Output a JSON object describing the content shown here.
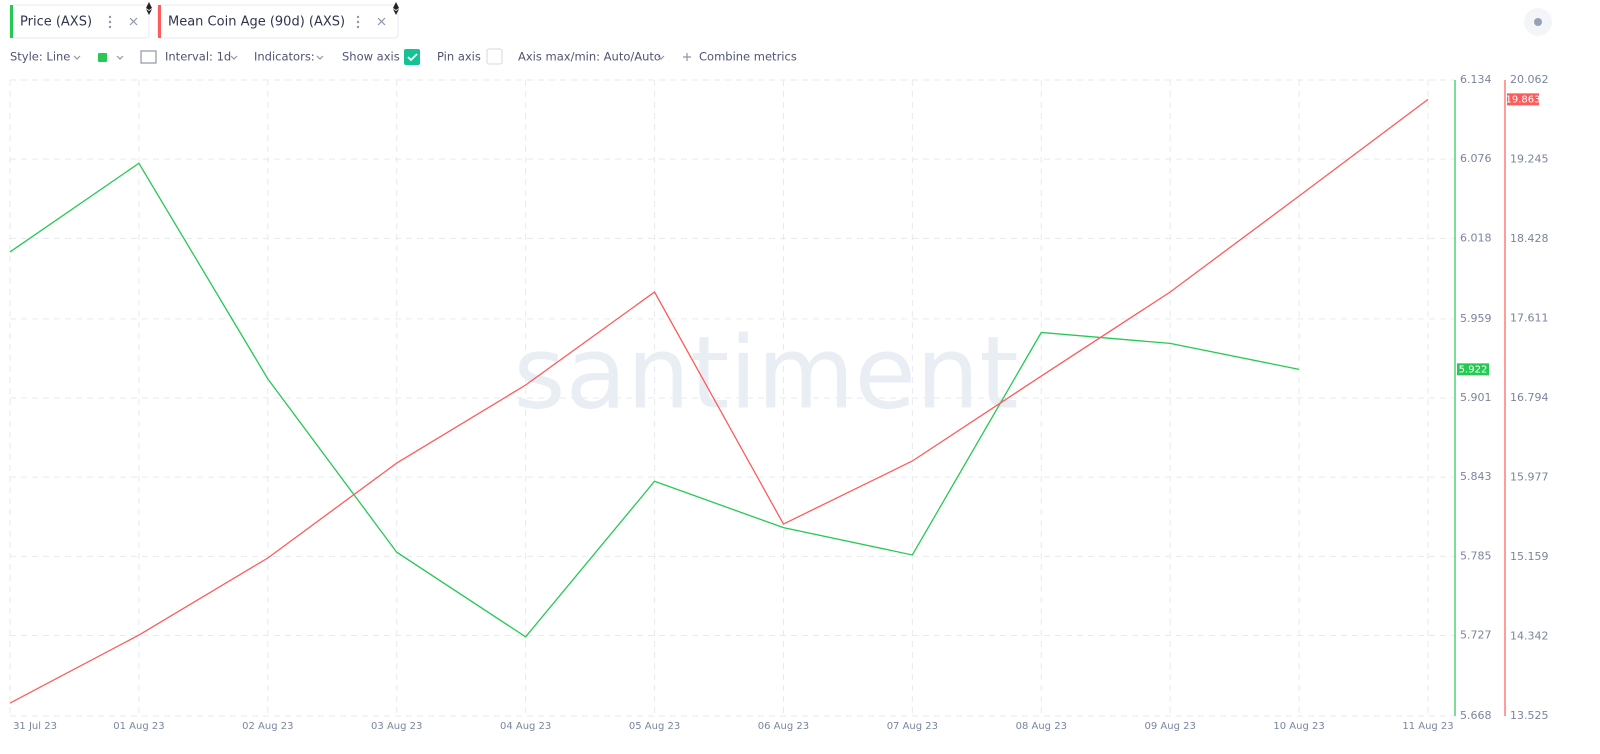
{
  "toolbar": {
    "style": "Style: Line",
    "interval": "Interval: 1d",
    "indicators": "Indicators:",
    "show_axis": "Show axis",
    "pin_axis": "Pin axis",
    "axis_maxmin": "Axis max/min: Auto/Auto",
    "combine": "Combine metrics"
  },
  "watermark": "santiment",
  "chart_data": {
    "type": "line",
    "x": [
      "31 Jul 23",
      "01 Aug 23",
      "02 Aug 23",
      "03 Aug 23",
      "04 Aug 23",
      "05 Aug 23",
      "06 Aug 23",
      "07 Aug 23",
      "08 Aug 23",
      "09 Aug 23",
      "10 Aug 23",
      "11 Aug 23"
    ],
    "series": [
      {
        "name": "Price (AXS)",
        "color": "#26c953",
        "values": [
          6.008,
          6.073,
          5.915,
          5.788,
          5.726,
          5.84,
          5.806,
          5.786,
          5.949,
          5.941,
          5.922,
          null
        ]
      },
      {
        "name": "Mean Coin Age (90d) (AXS)",
        "color": "#ff5b5b",
        "axis": "y2",
        "values": [
          13.658,
          14.357,
          15.149,
          16.125,
          16.927,
          17.883,
          15.498,
          16.146,
          17.019,
          17.883,
          18.87,
          19.863
        ]
      }
    ],
    "ylim": [
      5.668,
      6.134
    ],
    "yticks": [
      5.668,
      5.727,
      5.785,
      5.843,
      5.901,
      5.959,
      6.018,
      6.076,
      6.134
    ],
    "y2lim": [
      13.525,
      20.062
    ],
    "y2ticks": [
      13.525,
      14.342,
      15.159,
      15.977,
      16.794,
      17.611,
      18.428,
      19.245,
      20.062
    ],
    "grid": true
  }
}
